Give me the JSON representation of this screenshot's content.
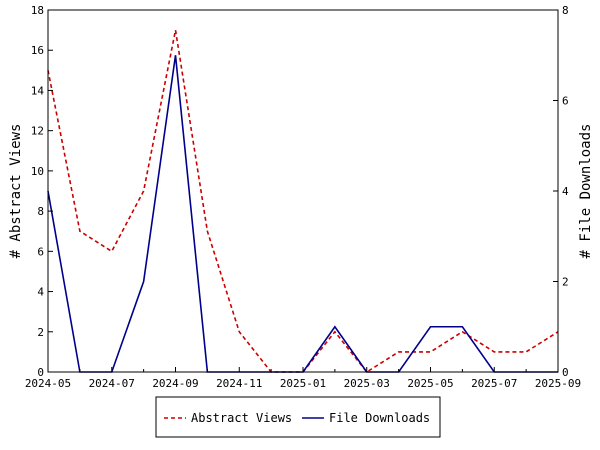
{
  "chart_data": {
    "type": "line",
    "x": [
      "2024-05",
      "2024-06",
      "2024-07",
      "2024-08",
      "2024-09",
      "2024-10",
      "2024-11",
      "2024-12",
      "2025-01",
      "2025-02",
      "2025-03",
      "2025-04",
      "2025-05",
      "2025-06",
      "2025-07",
      "2025-08",
      "2025-09"
    ],
    "xticks": [
      "2024-05",
      "2024-07",
      "2024-09",
      "2024-11",
      "2025-01",
      "2025-03",
      "2025-05",
      "2025-07",
      "2025-09"
    ],
    "ylabel_left": "# Abstract Views",
    "ylabel_right": "# File Downloads",
    "ylim_left": [
      0,
      18
    ],
    "yticks_left": [
      0,
      2,
      4,
      6,
      8,
      10,
      12,
      14,
      16,
      18
    ],
    "ylim_right": [
      0,
      8
    ],
    "yticks_right": [
      0,
      2,
      4,
      6,
      8
    ],
    "legend_position": "bottom",
    "series": [
      {
        "name": "Abstract Views",
        "axis": "left",
        "color": "#cc0000",
        "style": "dashed",
        "values": [
          15,
          7,
          6,
          9,
          17,
          7,
          2,
          0,
          0,
          2,
          0,
          1,
          1,
          2,
          1,
          1,
          2
        ]
      },
      {
        "name": "File Downloads",
        "axis": "right",
        "color": "#00008b",
        "style": "solid",
        "values": [
          4,
          0,
          0,
          2,
          7,
          0,
          0,
          0,
          0,
          1,
          0,
          0,
          1,
          1,
          0,
          0,
          0
        ]
      }
    ]
  }
}
